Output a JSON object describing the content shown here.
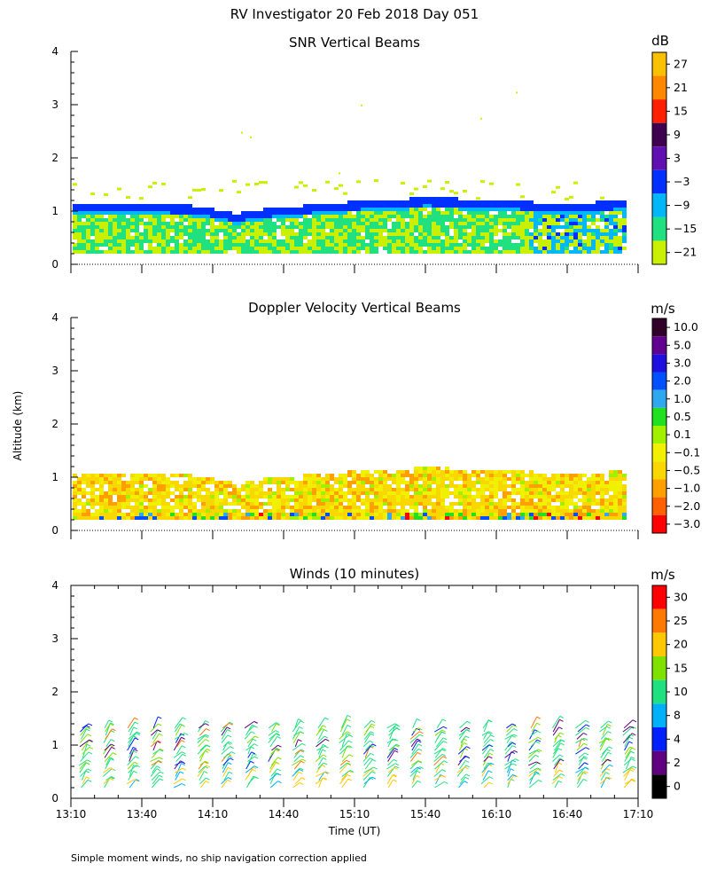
{
  "title": "RV Investigator  20 Feb 2018 Day 051",
  "ylabel": "Altitude (km)",
  "xlabel": "Time (UT)",
  "note": "Simple moment winds, no ship navigation correction applied",
  "x_ticks": [
    "13:10",
    "13:40",
    "14:10",
    "14:40",
    "15:10",
    "15:40",
    "16:10",
    "16:40",
    "17:10"
  ],
  "y_ticks": [
    "0",
    "1",
    "2",
    "3",
    "4"
  ],
  "chart_data": [
    {
      "type": "heatmap",
      "title": "SNR Vertical Beams",
      "unit": "dB",
      "xlim": [
        "13:10",
        "17:10"
      ],
      "ylim": [
        0,
        4
      ],
      "colorbar_labels": [
        "27",
        "21",
        "15",
        "9",
        "3",
        "−3",
        "−9",
        "−15",
        "−21"
      ],
      "colors": [
        "#f8c000",
        "#ff8800",
        "#ff2000",
        "#400050",
        "#6010b0",
        "#0030ff",
        "#00b8f8",
        "#20e080",
        "#c8f000"
      ],
      "layer_top_km_profile": [
        [
          "13:10",
          1.0
        ],
        [
          "13:40",
          0.98
        ],
        [
          "14:00",
          0.95
        ],
        [
          "14:20",
          0.8
        ],
        [
          "14:30",
          0.88
        ],
        [
          "15:00",
          1.0
        ],
        [
          "15:40",
          1.1
        ],
        [
          "16:10",
          1.05
        ],
        [
          "16:40",
          0.98
        ],
        [
          "17:05",
          1.05
        ]
      ]
    },
    {
      "type": "heatmap",
      "title": "Doppler Velocity Vertical Beams",
      "unit": "m/s",
      "xlim": [
        "13:10",
        "17:10"
      ],
      "ylim": [
        0,
        4
      ],
      "colorbar_labels": [
        "10.0",
        "5.0",
        "3.0",
        "2.0",
        "1.0",
        "0.5",
        "0.1",
        "−0.1",
        "−0.5",
        "−1.0",
        "−2.0",
        "−3.0"
      ],
      "colors": [
        "#300028",
        "#600090",
        "#2010e0",
        "#0050ff",
        "#30a8f0",
        "#20e020",
        "#a0f000",
        "#f0f000",
        "#f8d800",
        "#ffa000",
        "#ff6000",
        "#ff0000"
      ]
    },
    {
      "type": "scatter",
      "title": "Winds (10 minutes)",
      "unit": "m/s",
      "xlim": [
        "13:10",
        "17:10"
      ],
      "ylim": [
        0,
        4
      ],
      "colorbar_labels": [
        "30",
        "25",
        "20",
        "15",
        "10",
        "8",
        "4",
        "2",
        "0"
      ],
      "colors": [
        "#ff0000",
        "#ff7800",
        "#ffc800",
        "#80e000",
        "#20e080",
        "#00b0f8",
        "#0020ff",
        "#600080",
        "#000000"
      ],
      "wind_profile_times": [
        "13:15",
        "13:25",
        "13:35",
        "13:45",
        "13:55",
        "14:05",
        "14:15",
        "14:25",
        "14:35",
        "14:45",
        "14:55",
        "15:05",
        "15:15",
        "15:25",
        "15:35",
        "15:45",
        "15:55",
        "16:05",
        "16:15",
        "16:25",
        "16:35",
        "16:45",
        "16:55",
        "17:05"
      ]
    }
  ]
}
